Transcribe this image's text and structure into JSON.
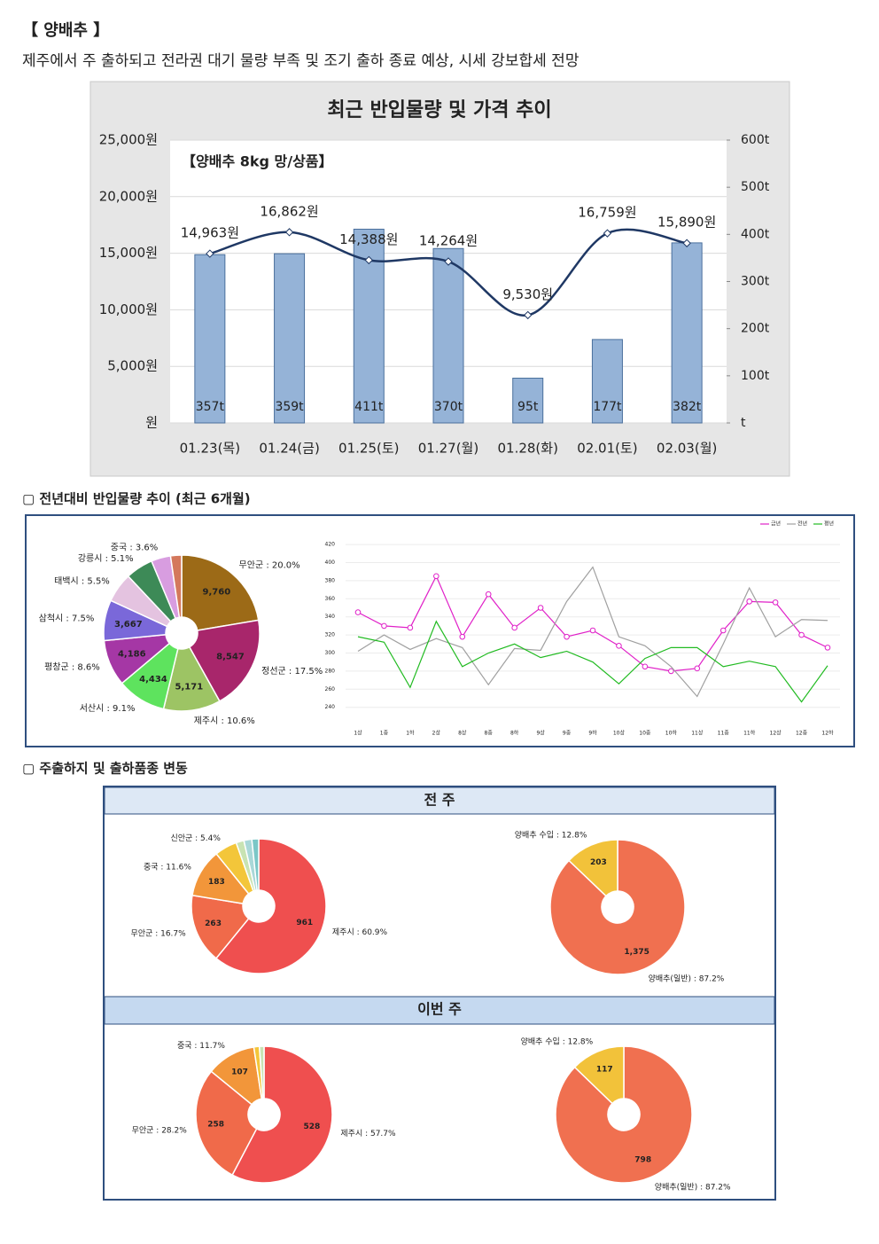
{
  "header": {
    "title": "【 양배추 】",
    "subtitle": "제주에서 주 출하되고 전라권 대기 물량 부족 및 조기 출하 종료 예상, 시세 강보합세 전망"
  },
  "sections": [
    "▢ 전년대비 반입물량 추이 (최근 6개월)",
    "▢ 주출하지 및 출하품종 변동"
  ],
  "panels": [
    "전 주",
    "이번 주"
  ],
  "chart_data": [
    {
      "type": "bar_line",
      "title": "최근 반입물량 및 가격 추이",
      "annotation": "【양배추 8kg 망/상품】",
      "categories": [
        "01.23(목)",
        "01.24(금)",
        "01.25(토)",
        "01.27(월)",
        "01.28(화)",
        "02.01(토)",
        "02.03(월)"
      ],
      "series": [
        {
          "type": "bar",
          "axis": "y2",
          "color": "#95b3d7",
          "values": [
            357,
            359,
            411,
            370,
            95,
            177,
            382
          ],
          "value_labels": [
            "357t",
            "359t",
            "411t",
            "370t",
            "95t",
            "177t",
            "382t"
          ]
        },
        {
          "type": "line",
          "color": "#1f3864",
          "values": [
            14963,
            16862,
            14388,
            14264,
            9530,
            16759,
            15890
          ],
          "value_labels": [
            "14,963원",
            "16,862원",
            "14,388원",
            "14,264원",
            "9,530원",
            "16,759원",
            "15,890원"
          ]
        }
      ],
      "ylim": [
        0,
        25000
      ],
      "yticks": [
        {
          "value": 0,
          "label": "원"
        },
        {
          "value": 5000,
          "label": "5,000원"
        },
        {
          "value": 10000,
          "label": "10,000원"
        },
        {
          "value": 15000,
          "label": "15,000원"
        },
        {
          "value": 20000,
          "label": "20,000원"
        },
        {
          "value": 25000,
          "label": "25,000원"
        }
      ],
      "y2lim": [
        0,
        600
      ],
      "y2ticks": [
        {
          "value": 0,
          "label": "t"
        },
        {
          "value": 100,
          "label": "100t"
        },
        {
          "value": 200,
          "label": "200t"
        },
        {
          "value": 300,
          "label": "300t"
        },
        {
          "value": 400,
          "label": "400t"
        },
        {
          "value": 500,
          "label": "500t"
        },
        {
          "value": 600,
          "label": "600t"
        }
      ],
      "grid": true
    },
    {
      "type": "donut",
      "categories": [
        "무안군 : 20.0%",
        "정선군 : 17.5%",
        "제주시 : 10.6%",
        "서산시 : 9.1%",
        "평창군 : 8.6%",
        "삼척시 : 7.5%",
        "태백시 : 5.5%",
        "강릉시 : 5.1%",
        "중국 : 3.6%",
        null
      ],
      "values": [
        9760,
        8547,
        5171,
        4434,
        4186,
        3667,
        2684,
        2489,
        1757,
        1000
      ],
      "value_labels": [
        "9,760",
        "8,547",
        "5,171",
        "4,434",
        "4,186",
        "3,667",
        null,
        null,
        null,
        null
      ],
      "colors": [
        "#9c6a17",
        "#a8266b",
        "#9dc464",
        "#5ee35e",
        "#a537a5",
        "#7a68d9",
        "#e4c3e0",
        "#3d8a57",
        "#d89de0",
        "#d4785c"
      ]
    },
    {
      "type": "line",
      "categories": [
        "1상",
        "1중",
        "1하",
        "2상",
        "8상",
        "8중",
        "8하",
        "9상",
        "9중",
        "9하",
        "10상",
        "10중",
        "10하",
        "11상",
        "11중",
        "11하",
        "12상",
        "12중",
        "12하"
      ],
      "series": [
        {
          "name": "금년",
          "color": "#e020c8",
          "markers": true,
          "values": [
            345,
            330,
            328,
            385,
            318,
            365,
            328,
            350,
            318,
            325,
            308,
            285,
            280,
            283,
            325,
            357,
            356,
            320,
            306
          ]
        },
        {
          "name": "전년",
          "color": "#a0a0a0",
          "markers": false,
          "values": [
            302,
            320,
            304,
            316,
            306,
            265,
            305,
            303,
            357,
            395,
            318,
            308,
            285,
            252,
            310,
            372,
            318,
            337,
            336
          ]
        },
        {
          "name": "평년",
          "color": "#22bb22",
          "markers": false,
          "values": [
            318,
            312,
            262,
            335,
            285,
            300,
            310,
            295,
            302,
            290,
            266,
            294,
            306,
            306,
            285,
            291,
            285,
            246,
            286
          ]
        }
      ],
      "ylim": [
        225,
        425
      ],
      "yticks": [
        240,
        260,
        280,
        300,
        320,
        340,
        360,
        380,
        400,
        420
      ],
      "grid": true,
      "legend": "top-right"
    },
    {
      "type": "donut",
      "categories": [
        "제주시 : 60.9%",
        "무안군 : 16.7%",
        "중국 : 11.6%",
        "신안군 : 5.4%",
        null,
        null,
        null
      ],
      "values": [
        961,
        263,
        183,
        85,
        30,
        30,
        26
      ],
      "value_labels": [
        "961",
        "263",
        "183",
        null,
        null,
        null,
        null
      ],
      "colors": [
        "#ef4f4f",
        "#f06a4a",
        "#f2963a",
        "#f3c63a",
        "#c8e3b3",
        "#a9d8d8",
        "#7bc7c7"
      ]
    },
    {
      "type": "donut",
      "categories": [
        "양배추(일반) : 87.2%",
        "양배추 수입 : 12.8%"
      ],
      "values": [
        1375,
        203
      ],
      "value_labels": [
        "1,375",
        "203"
      ],
      "colors": [
        "#f07050",
        "#f2c23a"
      ]
    },
    {
      "type": "donut",
      "categories": [
        "제주시 : 57.7%",
        "무안군 : 28.2%",
        "중국 : 11.7%",
        null,
        null
      ],
      "values": [
        528,
        258,
        107,
        12,
        10
      ],
      "value_labels": [
        "528",
        "258",
        "107",
        null,
        null
      ],
      "colors": [
        "#ef4f4f",
        "#f06a4a",
        "#f2963a",
        "#f3c63a",
        "#c8e3b3"
      ]
    },
    {
      "type": "donut",
      "categories": [
        "양배추(일반) : 87.2%",
        "양배추 수입 : 12.8%"
      ],
      "values": [
        798,
        117
      ],
      "value_labels": [
        "798",
        "117"
      ],
      "colors": [
        "#f07050",
        "#f2c23a"
      ]
    }
  ]
}
